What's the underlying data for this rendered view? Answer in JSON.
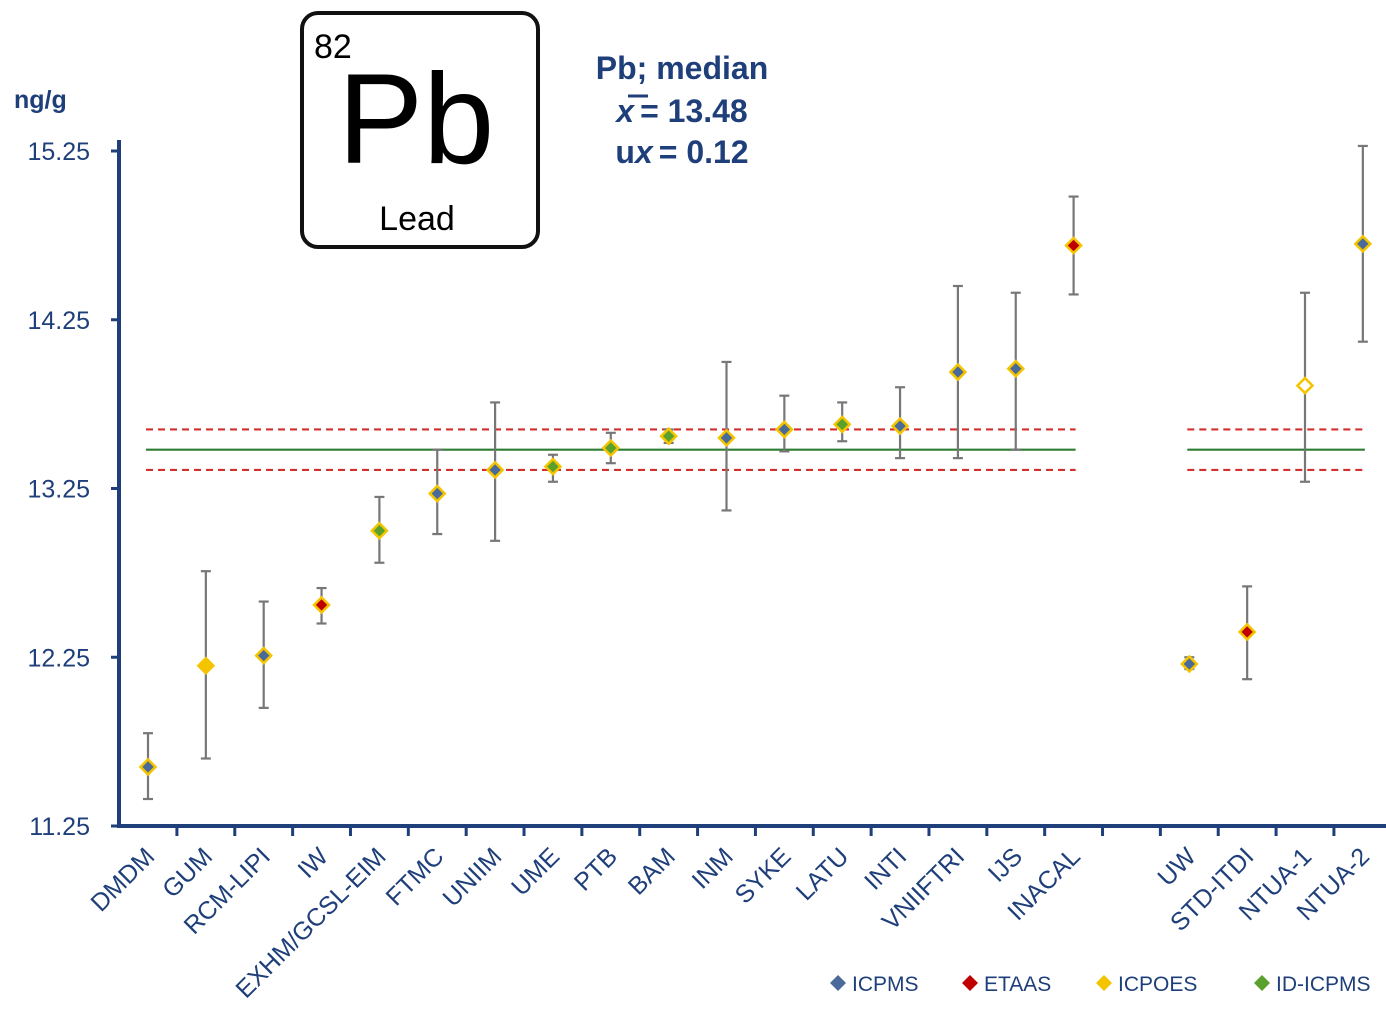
{
  "element_box": {
    "atomic_number": "82",
    "symbol": "Pb",
    "name": "Lead"
  },
  "stats": {
    "title": "Pb; median",
    "mean_symbol": "x",
    "mean_value": "= 13.48",
    "u_prefix": "u",
    "u_symbol": "x",
    "u_value": "= 0.12"
  },
  "colors": {
    "axis": "#1f3f7a",
    "median_line": "#2e7d32",
    "band_line": "#d32f2f",
    "error_bar": "#777777",
    "marker_outline": "#f5c400",
    "ICPMS": "#4a6a9a",
    "ETAAS": "#c00000",
    "ICPOES": "#f5c400",
    "ID-ICPMS": "#5aa02c"
  },
  "chart_data": {
    "type": "scatter",
    "ylabel": "ng/g",
    "ylim": [
      11.25,
      15.25
    ],
    "yticks": [
      "11.25",
      "12.25",
      "13.25",
      "14.25",
      "15.25"
    ],
    "median": 13.48,
    "band": [
      13.36,
      13.6
    ],
    "categories": [
      "DMDM",
      "GUM",
      "RCM-LIPI",
      "IW",
      "EXHM/GCSL-EIM",
      "FTMC",
      "UNIIM",
      "UME",
      "PTB",
      "BAM",
      "INM",
      "SYKE",
      "LATU",
      "INTI",
      "VNIIFTRI",
      "IJS",
      "INACAL",
      "",
      "UW",
      "STD-ITDI",
      "NTUA-1",
      "NTUA-2"
    ],
    "points": [
      {
        "lab": "DMDM",
        "value": 11.6,
        "low": 11.41,
        "high": 11.8,
        "method": "ICPMS"
      },
      {
        "lab": "GUM",
        "value": 12.2,
        "low": 11.65,
        "high": 12.76,
        "method": "ICPOES"
      },
      {
        "lab": "RCM-LIPI",
        "value": 12.26,
        "low": 11.95,
        "high": 12.58,
        "method": "ICPMS"
      },
      {
        "lab": "IW",
        "value": 12.56,
        "low": 12.45,
        "high": 12.66,
        "method": "ETAAS"
      },
      {
        "lab": "EXHM/GCSL-EIM",
        "value": 13.0,
        "low": 12.81,
        "high": 13.2,
        "method": "ID-ICPMS"
      },
      {
        "lab": "FTMC",
        "value": 13.22,
        "low": 12.98,
        "high": 13.48,
        "method": "ICPMS"
      },
      {
        "lab": "UNIIM",
        "value": 13.36,
        "low": 12.94,
        "high": 13.76,
        "method": "ICPMS"
      },
      {
        "lab": "UME",
        "value": 13.38,
        "low": 13.29,
        "high": 13.45,
        "method": "ID-ICPMS"
      },
      {
        "lab": "PTB",
        "value": 13.49,
        "low": 13.4,
        "high": 13.58,
        "method": "ID-ICPMS"
      },
      {
        "lab": "BAM",
        "value": 13.56,
        "low": 13.52,
        "high": 13.6,
        "method": "ID-ICPMS"
      },
      {
        "lab": "INM",
        "value": 13.55,
        "low": 13.12,
        "high": 14.0,
        "method": "ICPMS"
      },
      {
        "lab": "SYKE",
        "value": 13.6,
        "low": 13.47,
        "high": 13.8,
        "method": "ICPMS"
      },
      {
        "lab": "LATU",
        "value": 13.63,
        "low": 13.53,
        "high": 13.76,
        "method": "ID-ICPMS"
      },
      {
        "lab": "INTI",
        "value": 13.62,
        "low": 13.43,
        "high": 13.85,
        "method": "ICPMS"
      },
      {
        "lab": "VNIIFTRI",
        "value": 13.94,
        "low": 13.43,
        "high": 14.45,
        "method": "ICPMS"
      },
      {
        "lab": "IJS",
        "value": 13.96,
        "low": 13.48,
        "high": 14.41,
        "method": "ICPMS"
      },
      {
        "lab": "INACAL",
        "value": 14.69,
        "low": 14.4,
        "high": 14.98,
        "method": "ETAAS"
      },
      {
        "lab": "UW",
        "value": 12.21,
        "low": 12.18,
        "high": 12.25,
        "method": "ICPMS"
      },
      {
        "lab": "STD-ITDI",
        "value": 12.4,
        "low": 12.12,
        "high": 12.67,
        "method": "ETAAS"
      },
      {
        "lab": "NTUA-1",
        "value": 13.86,
        "low": 13.29,
        "high": 14.41,
        "method": "ICPOES",
        "open": true
      },
      {
        "lab": "NTUA-2",
        "value": 14.7,
        "low": 14.12,
        "high": 15.28,
        "method": "ICPMS"
      }
    ]
  },
  "legend": [
    {
      "label": "ICPMS",
      "method": "ICPMS"
    },
    {
      "label": "ETAAS",
      "method": "ETAAS"
    },
    {
      "label": "ICPOES",
      "method": "ICPOES"
    },
    {
      "label": "ID-ICPMS",
      "method": "ID-ICPMS"
    }
  ]
}
